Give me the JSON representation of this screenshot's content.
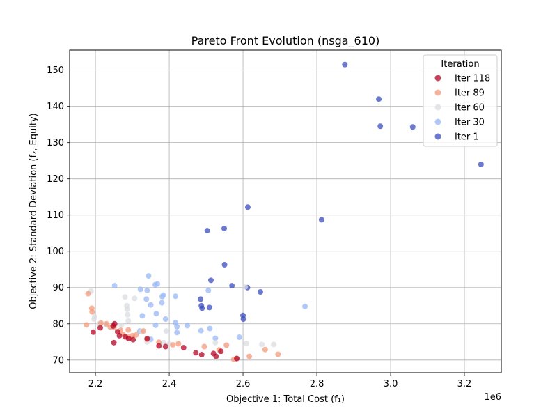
{
  "chart_data": {
    "type": "scatter",
    "title": "Pareto Front Evolution (nsga_610)",
    "xlabel": "Objective 1: Total Cost (f₁)",
    "ylabel": "Objective 2: Standard Deviation (f₂, Equity)",
    "x_offset_label": "1e6",
    "xlim": [
      2.13,
      3.3
    ],
    "ylim": [
      66.5,
      155.5
    ],
    "xticks": [
      2.2,
      2.4,
      2.6,
      2.8,
      3.0,
      3.2
    ],
    "yticks": [
      70,
      80,
      90,
      100,
      110,
      120,
      130,
      140,
      150
    ],
    "grid": true,
    "legend": {
      "title": "Iteration",
      "position": "top-right"
    },
    "series": [
      {
        "name": "Iter 1",
        "color": "#3b4cc0",
        "points": [
          [
            2.876,
            151.5
          ],
          [
            2.968,
            142.0
          ],
          [
            2.972,
            134.5
          ],
          [
            3.06,
            134.3
          ],
          [
            3.245,
            124.0
          ],
          [
            2.613,
            112.2
          ],
          [
            2.813,
            108.7
          ],
          [
            2.549,
            106.3
          ],
          [
            2.503,
            105.7
          ],
          [
            2.55,
            96.3
          ],
          [
            2.513,
            92.0
          ],
          [
            2.57,
            90.5
          ],
          [
            2.612,
            90.0
          ],
          [
            2.647,
            88.8
          ],
          [
            2.485,
            86.8
          ],
          [
            2.487,
            85.0
          ],
          [
            2.489,
            84.3
          ],
          [
            2.509,
            84.5
          ],
          [
            2.6,
            82.3
          ],
          [
            2.601,
            81.3
          ]
        ]
      },
      {
        "name": "Iter 30",
        "color": "#9ab8f5",
        "points": [
          [
            2.252,
            90.5
          ],
          [
            2.34,
            89.2
          ],
          [
            2.322,
            89.5
          ],
          [
            2.344,
            93.2
          ],
          [
            2.368,
            91.0
          ],
          [
            2.362,
            90.8
          ],
          [
            2.384,
            87.9
          ],
          [
            2.381,
            87.5
          ],
          [
            2.338,
            86.8
          ],
          [
            2.417,
            87.6
          ],
          [
            2.417,
            80.3
          ],
          [
            2.38,
            85.8
          ],
          [
            2.35,
            85.2
          ],
          [
            2.365,
            82.8
          ],
          [
            2.327,
            82.2
          ],
          [
            2.39,
            81.3
          ],
          [
            2.363,
            79.6
          ],
          [
            2.449,
            79.5
          ],
          [
            2.421,
            79.2
          ],
          [
            2.51,
            78.7
          ],
          [
            2.486,
            78.1
          ],
          [
            2.421,
            77.6
          ],
          [
            2.525,
            76.0
          ],
          [
            2.59,
            76.3
          ],
          [
            2.506,
            89.2
          ],
          [
            2.768,
            84.8
          ],
          [
            2.35,
            75.7
          ],
          [
            2.32,
            78.0
          ]
        ]
      },
      {
        "name": "Iter 60",
        "color": "#d9dce1",
        "points": [
          [
            2.188,
            89.0
          ],
          [
            2.198,
            82.0
          ],
          [
            2.196,
            81.3
          ],
          [
            2.28,
            87.4
          ],
          [
            2.285,
            85.0
          ],
          [
            2.286,
            84.0
          ],
          [
            2.287,
            82.5
          ],
          [
            2.289,
            80.8
          ],
          [
            2.306,
            87.0
          ],
          [
            2.253,
            79.8
          ],
          [
            2.27,
            79.6
          ],
          [
            2.325,
            77.9
          ],
          [
            2.392,
            78.0
          ],
          [
            2.34,
            75.0
          ],
          [
            2.385,
            74.8
          ],
          [
            2.4,
            74.4
          ],
          [
            2.525,
            74.8
          ],
          [
            2.609,
            74.6
          ],
          [
            2.651,
            74.3
          ],
          [
            2.683,
            74.3
          ],
          [
            2.606,
            90.2
          ],
          [
            2.21,
            80.0
          ],
          [
            2.23,
            79.7
          ]
        ]
      },
      {
        "name": "Iter 89",
        "color": "#f4987a",
        "points": [
          [
            2.176,
            79.7
          ],
          [
            2.18,
            88.3
          ],
          [
            2.19,
            84.3
          ],
          [
            2.191,
            83.3
          ],
          [
            2.215,
            80.2
          ],
          [
            2.23,
            80.0
          ],
          [
            2.24,
            79.1
          ],
          [
            2.25,
            79.0
          ],
          [
            2.268,
            78.2
          ],
          [
            2.275,
            77.0
          ],
          [
            2.29,
            76.3
          ],
          [
            2.3,
            76.7
          ],
          [
            2.31,
            76.9
          ],
          [
            2.33,
            78.0
          ],
          [
            2.34,
            75.7
          ],
          [
            2.372,
            74.9
          ],
          [
            2.41,
            74.2
          ],
          [
            2.425,
            74.5
          ],
          [
            2.495,
            73.7
          ],
          [
            2.535,
            72.8
          ],
          [
            2.555,
            74.1
          ],
          [
            2.617,
            71.0
          ],
          [
            2.66,
            72.9
          ],
          [
            2.695,
            71.6
          ],
          [
            2.583,
            70.5
          ],
          [
            2.575,
            70.2
          ],
          [
            2.289,
            78.3
          ]
        ]
      },
      {
        "name": "Iter 118",
        "color": "#b40426",
        "points": [
          [
            2.194,
            77.7
          ],
          [
            2.213,
            78.9
          ],
          [
            2.25,
            74.8
          ],
          [
            2.248,
            79.4
          ],
          [
            2.26,
            77.8
          ],
          [
            2.265,
            76.7
          ],
          [
            2.281,
            76.4
          ],
          [
            2.29,
            75.9
          ],
          [
            2.302,
            75.6
          ],
          [
            2.34,
            75.9
          ],
          [
            2.372,
            73.9
          ],
          [
            2.39,
            73.7
          ],
          [
            2.439,
            73.4
          ],
          [
            2.472,
            72.0
          ],
          [
            2.488,
            71.5
          ],
          [
            2.52,
            71.8
          ],
          [
            2.527,
            71.0
          ],
          [
            2.54,
            72.4
          ],
          [
            2.583,
            70.4
          ],
          [
            2.252,
            80.0
          ]
        ]
      }
    ]
  }
}
